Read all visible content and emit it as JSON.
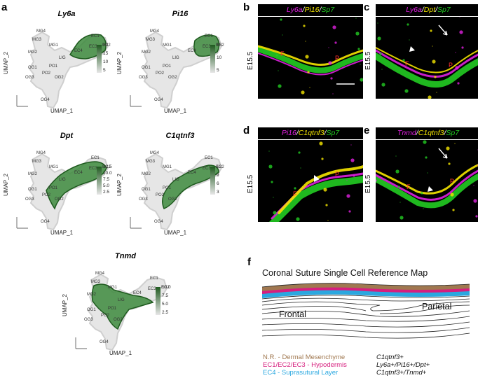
{
  "panels": {
    "a": "a",
    "b": "b",
    "c": "c",
    "d": "d",
    "e": "e",
    "f": "f"
  },
  "umap": {
    "x_axis": "UMAP_1",
    "y_axis": "UMAP_2",
    "plots": [
      {
        "gene": "Ly6a",
        "legend": [
          "20",
          "15",
          "10",
          "5"
        ]
      },
      {
        "gene": "Pi16",
        "legend": [
          "15",
          "10",
          "5"
        ]
      },
      {
        "gene": "Dpt",
        "legend": [
          "12.5",
          "10.0",
          "7.5",
          "5.0",
          "2.5"
        ]
      },
      {
        "gene": "C1qtnf3",
        "legend": [
          "12",
          "9",
          "6",
          "3"
        ]
      },
      {
        "gene": "Tnmd",
        "legend": [
          "10.0",
          "7.5",
          "5.0",
          "2.5"
        ]
      }
    ],
    "clusters": [
      "EC1",
      "EC2",
      "EC3",
      "EC4",
      "MG4",
      "MG3",
      "MG1",
      "MG2",
      "LIG",
      "OG1",
      "PO1",
      "PO2",
      "OG3",
      "OG2",
      "OG4"
    ]
  },
  "micro": {
    "b": {
      "g1": "Ly6a",
      "g2": "Pi16",
      "g3": "Sp7",
      "stage": "E15.5"
    },
    "c": {
      "g1": "Ly6a",
      "g2": "Dpt",
      "g3": "Sp7",
      "stage": "E15.5"
    },
    "d": {
      "g1": "Pi16",
      "g2": "C1qtnf3",
      "g3": "Sp7",
      "stage": "E15.5"
    },
    "e": {
      "g1": "Tnmd",
      "g2": "C1qtnf3",
      "g3": "Sp7",
      "stage": "E15.5"
    },
    "sep": "/",
    "F": "F",
    "P": "P"
  },
  "map": {
    "title": "Coronal Suture Single Cell Reference Map",
    "frontal": "Frontal",
    "parietal": "Parietal",
    "rows": [
      {
        "left": "N.R. - Dermal Mesenchyme",
        "right": "C1qtnf3+"
      },
      {
        "left": "EC1/EC2/EC3 - Hypodermis",
        "right": "Ly6a+/Pi16+/Dpt+"
      },
      {
        "left": "EC4 - Suprasutural Layer",
        "right": "C1qtnf3+/Tnmd+"
      }
    ]
  },
  "colors": {
    "umap_high": "#1e5a1e",
    "umap_low": "#e6e6e6",
    "magenta": "#e020e0",
    "yellow": "#f5e600",
    "green": "#22cc22",
    "dermal": "#a07850",
    "hypodermis": "#d61f7e",
    "suprasutural": "#2aa8e0"
  }
}
